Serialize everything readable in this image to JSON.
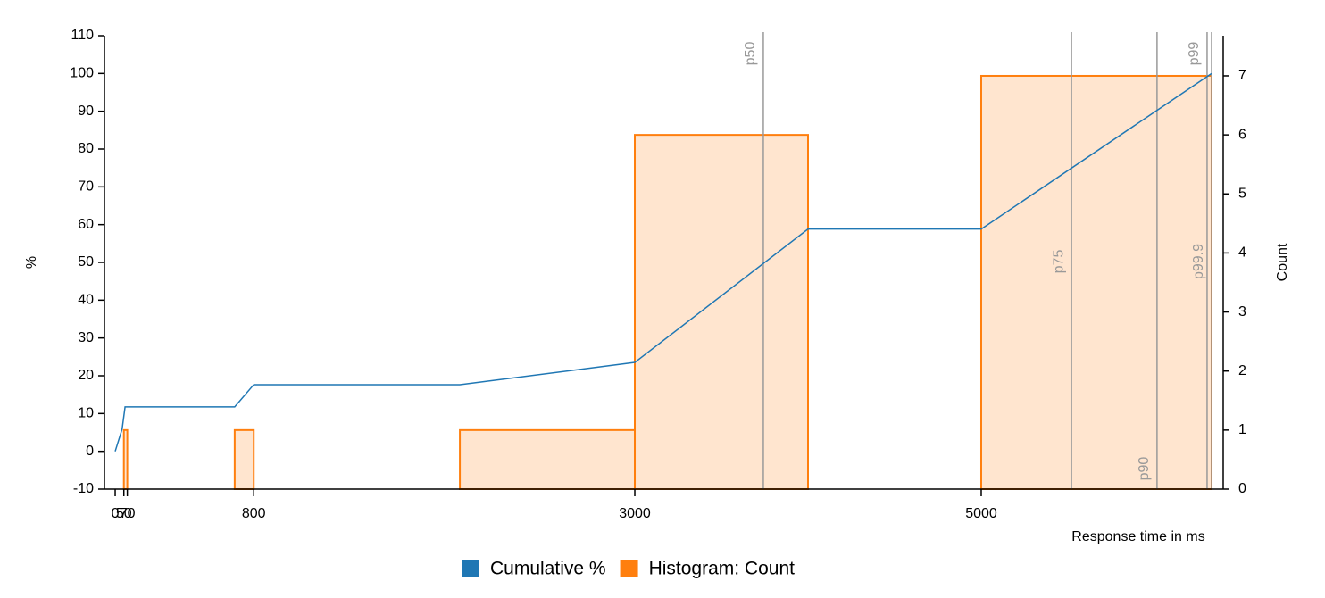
{
  "chart_data": {
    "type": "combo",
    "x_label": "Response time in ms",
    "y_label": "%",
    "y2_label": "Count",
    "xlim": [
      -62,
      6397
    ],
    "xticks": [
      0,
      50,
      70,
      800,
      3000,
      5000
    ],
    "ylim": [
      -10,
      110
    ],
    "yticks": [
      -10,
      0,
      10,
      20,
      30,
      40,
      50,
      60,
      70,
      80,
      90,
      100,
      110
    ],
    "y2lim": [
      0,
      7.68
    ],
    "y2ticks": [
      0,
      1,
      2,
      3,
      4,
      5,
      6,
      7
    ],
    "series": [
      {
        "name": "Cumulative %",
        "type": "line",
        "color": "#1f77b4",
        "x": [
          0,
          40,
          57,
          690,
          800,
          1990,
          3000,
          4000,
          5000,
          6330
        ],
        "values": [
          0,
          5.88,
          11.76,
          11.76,
          17.65,
          17.65,
          23.53,
          58.82,
          58.82,
          100
        ]
      },
      {
        "name": "Histogram: Count",
        "type": "histogram",
        "color": "#ff7f0e",
        "axis": "y2",
        "bins": [
          50,
          70,
          690,
          800,
          1990,
          3000,
          4000,
          5000,
          6330
        ],
        "values": [
          1,
          0,
          1,
          0,
          1,
          6,
          0,
          7
        ]
      }
    ],
    "annotations": [
      {
        "label": "p50",
        "x": 3742
      },
      {
        "label": "p75",
        "x": 5521
      },
      {
        "label": "p90",
        "x": 6015
      },
      {
        "label": "p99",
        "x": 6304
      },
      {
        "label": "p99.9",
        "x": 6330
      }
    ]
  }
}
